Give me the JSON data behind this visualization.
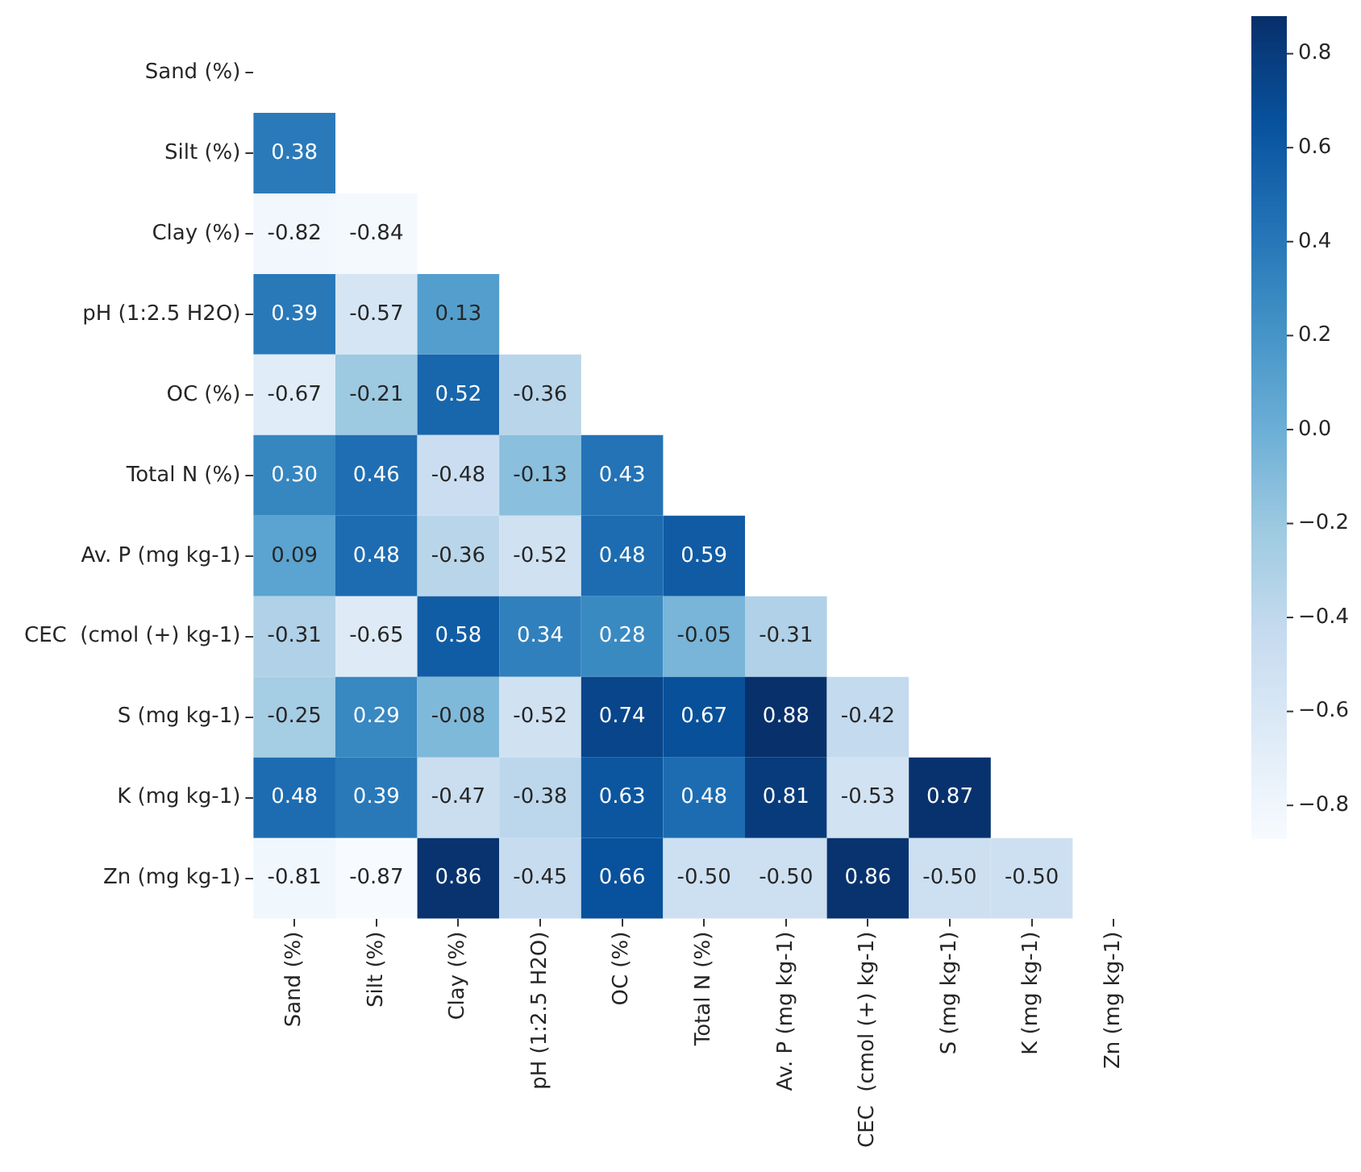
{
  "chart_data": {
    "type": "heatmap",
    "categories": [
      "Sand (%)",
      "Silt (%)",
      "Clay (%)",
      "pH (1:2.5 H2O)",
      "OC (%)",
      "Total N (%)",
      "Av. P (mg kg-1)",
      "CEC  (cmol (+) kg-1)",
      "S (mg kg-1)",
      "K (mg kg-1)",
      "Zn (mg kg-1)"
    ],
    "y_categories": [
      "Sand (%)",
      "Silt (%)",
      "Clay (%)",
      "pH (1:2.5 H2O)",
      "OC (%)",
      "Total N (%)",
      "Av. P (mg kg-1)",
      "CEC  (cmol (+) kg-1)",
      "S (mg kg-1)",
      "K (mg kg-1)",
      "Zn (mg kg-1)"
    ],
    "cells": [
      [
        null,
        null,
        null,
        null,
        null,
        null,
        null,
        null,
        null,
        null,
        null
      ],
      [
        0.38,
        null,
        null,
        null,
        null,
        null,
        null,
        null,
        null,
        null,
        null
      ],
      [
        -0.82,
        -0.84,
        null,
        null,
        null,
        null,
        null,
        null,
        null,
        null,
        null
      ],
      [
        0.39,
        -0.57,
        0.13,
        null,
        null,
        null,
        null,
        null,
        null,
        null,
        null
      ],
      [
        -0.67,
        -0.21,
        0.52,
        -0.36,
        null,
        null,
        null,
        null,
        null,
        null,
        null
      ],
      [
        0.3,
        0.46,
        -0.48,
        -0.13,
        0.43,
        null,
        null,
        null,
        null,
        null,
        null
      ],
      [
        0.09,
        0.48,
        -0.36,
        -0.52,
        0.48,
        0.59,
        null,
        null,
        null,
        null,
        null
      ],
      [
        -0.31,
        -0.65,
        0.58,
        0.34,
        0.28,
        -0.05,
        -0.31,
        null,
        null,
        null,
        null
      ],
      [
        -0.25,
        0.29,
        -0.08,
        -0.52,
        0.74,
        0.67,
        0.88,
        -0.42,
        null,
        null,
        null
      ],
      [
        0.48,
        0.39,
        -0.47,
        -0.38,
        0.63,
        0.48,
        0.81,
        -0.53,
        0.87,
        null,
        null
      ],
      [
        -0.81,
        -0.87,
        0.86,
        -0.45,
        0.66,
        -0.5,
        -0.5,
        0.86,
        -0.5,
        -0.5,
        null
      ]
    ],
    "cell_labels": [
      [
        null,
        null,
        null,
        null,
        null,
        null,
        null,
        null,
        null,
        null,
        null
      ],
      [
        "0.38",
        null,
        null,
        null,
        null,
        null,
        null,
        null,
        null,
        null,
        null
      ],
      [
        "-0.82",
        "-0.84",
        null,
        null,
        null,
        null,
        null,
        null,
        null,
        null,
        null
      ],
      [
        "0.39",
        "-0.57",
        "0.13",
        null,
        null,
        null,
        null,
        null,
        null,
        null,
        null
      ],
      [
        "-0.67",
        "-0.21",
        "0.52",
        "-0.36",
        null,
        null,
        null,
        null,
        null,
        null,
        null
      ],
      [
        "0.30",
        "0.46",
        "-0.48",
        "-0.13",
        "0.43",
        null,
        null,
        null,
        null,
        null,
        null
      ],
      [
        "0.09",
        "0.48",
        "-0.36",
        "-0.52",
        "0.48",
        "0.59",
        null,
        null,
        null,
        null,
        null
      ],
      [
        "-0.31",
        "-0.65",
        "0.58",
        "0.34",
        "0.28",
        "-0.05",
        "-0.31",
        null,
        null,
        null,
        null
      ],
      [
        "-0.25",
        "0.29",
        "-0.08",
        "-0.52",
        "0.74",
        "0.67",
        "0.88",
        "-0.42",
        null,
        null,
        null
      ],
      [
        "0.48",
        "0.39",
        "-0.47",
        "-0.38",
        "0.63",
        "0.48",
        "0.81",
        "-0.53",
        "0.87",
        null,
        null
      ],
      [
        "-0.81",
        "-0.87",
        "0.86",
        "-0.45",
        "0.66",
        "-0.50",
        "-0.50",
        "0.86",
        "-0.50",
        "-0.50",
        null
      ]
    ],
    "clim": [
      -0.87,
      0.88
    ],
    "cticks": [
      {
        "value": -0.8,
        "label": "−0.8"
      },
      {
        "value": -0.6,
        "label": "−0.6"
      },
      {
        "value": -0.4,
        "label": "−0.4"
      },
      {
        "value": -0.2,
        "label": "−0.2"
      },
      {
        "value": 0,
        "label": "0.0"
      },
      {
        "value": 0.2,
        "label": "0.2"
      },
      {
        "value": 0.4,
        "label": "0.4"
      },
      {
        "value": 0.6,
        "label": "0.6"
      },
      {
        "value": 0.8,
        "label": "0.8"
      }
    ]
  }
}
